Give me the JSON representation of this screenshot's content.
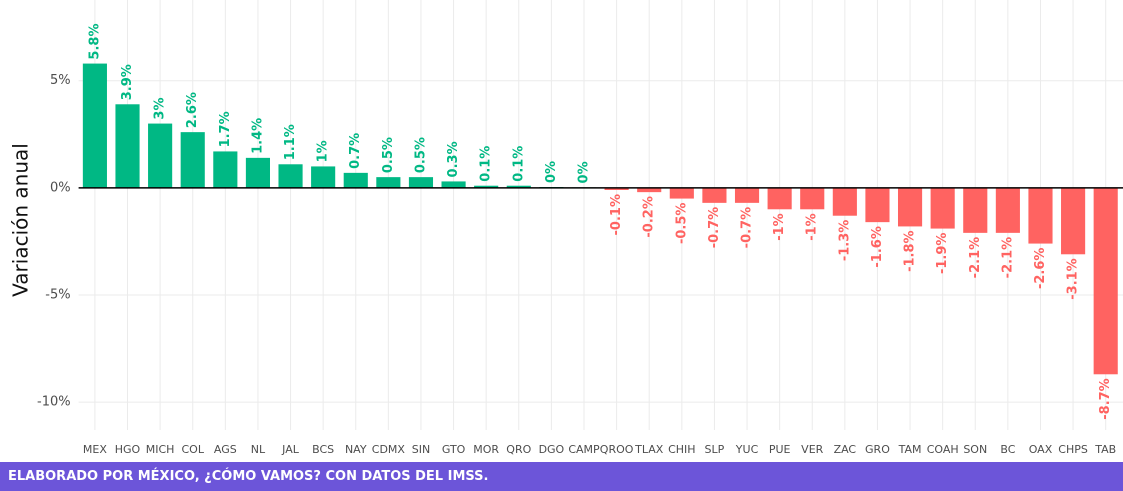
{
  "chart_data": {
    "type": "bar",
    "y_label": "Variación anual",
    "footer": "ELABORADO POR MÉXICO, ¿CÓMO VAMOS? CON DATOS DEL IMSS.",
    "categories": [
      "MEX",
      "HGO",
      "MICH",
      "COL",
      "AGS",
      "NL",
      "JAL",
      "BCS",
      "NAY",
      "CDMX",
      "SIN",
      "GTO",
      "MOR",
      "QRO",
      "DGO",
      "CAMP",
      "QROO",
      "TLAX",
      "CHIH",
      "SLP",
      "YUC",
      "PUE",
      "VER",
      "ZAC",
      "GRO",
      "TAM",
      "COAH",
      "SON",
      "BC",
      "OAX",
      "CHPS",
      "TAB"
    ],
    "values": [
      5.8,
      3.9,
      3,
      2.6,
      1.7,
      1.4,
      1.1,
      1,
      0.7,
      0.5,
      0.5,
      0.3,
      0.1,
      0.1,
      0.04,
      0.02,
      -0.1,
      -0.2,
      -0.5,
      -0.7,
      -0.7,
      -1,
      -1,
      -1.3,
      -1.6,
      -1.8,
      -1.9,
      -2.1,
      -2.1,
      -2.6,
      -3.1,
      -8.7
    ],
    "value_labels": [
      "5.8%",
      "3.9%",
      "3%",
      "2.6%",
      "1.7%",
      "1.4%",
      "1.1%",
      "1%",
      "0.7%",
      "0.5%",
      "0.5%",
      "0.3%",
      "0.1%",
      "0.1%",
      "0%",
      "0%",
      "-0.1%",
      "-0.2%",
      "-0.5%",
      "-0.7%",
      "-0.7%",
      "-1%",
      "-1%",
      "-1.3%",
      "-1.6%",
      "-1.8%",
      "-1.9%",
      "-2.1%",
      "-2.1%",
      "-2.6%",
      "-3.1%",
      "-8.7%"
    ],
    "positive_color": "#00b884",
    "negative_color": "#ff6361",
    "ylim": [
      -11.3,
      8.3
    ],
    "yticks": [
      {
        "value": -10,
        "label": "-10%"
      },
      {
        "value": -5,
        "label": "-5%"
      },
      {
        "value": 0,
        "label": "0%"
      },
      {
        "value": 5,
        "label": "5%"
      }
    ],
    "grid": true
  }
}
